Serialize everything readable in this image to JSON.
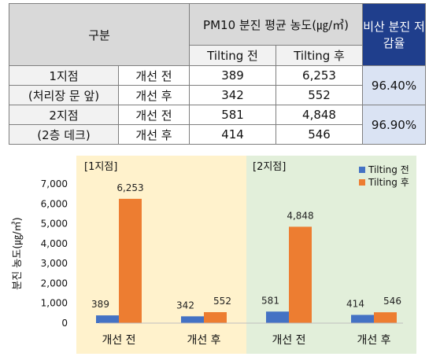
{
  "table": {
    "header_category": "구분",
    "header_pm10": "PM10 분진 평균 농도(㎍/㎥)",
    "header_reduction": "비산 분진 저감율",
    "sub_before": "Tilting 전",
    "sub_after": "Tilting 후",
    "rows": [
      {
        "site_line1": "1지점",
        "site_line2": "(처리장 문 앞)",
        "improve_before_label": "개선 전",
        "improve_after_label": "개선 후",
        "before_tilt_before": "389",
        "before_tilt_after": "6,253",
        "after_tilt_before": "342",
        "after_tilt_after": "552",
        "reduction": "96.40%"
      },
      {
        "site_line1": "2지점",
        "site_line2": "(2층 데크)",
        "improve_before_label": "개선 전",
        "improve_after_label": "개선 후",
        "before_tilt_before": "581",
        "before_tilt_after": "4,848",
        "after_tilt_before": "414",
        "after_tilt_after": "546",
        "reduction": "96.90%"
      }
    ]
  },
  "chart_data": {
    "type": "bar",
    "ylabel": "분진 농도(㎍/㎥)",
    "ylim": [
      0,
      7000
    ],
    "yticks": [
      0,
      1000,
      2000,
      3000,
      4000,
      5000,
      6000,
      7000
    ],
    "ytick_labels": [
      "0",
      "1,000",
      "2,000",
      "3,000",
      "4,000",
      "5,000",
      "6,000",
      "7,000"
    ],
    "groups": [
      "[1지점]",
      "[2지점]"
    ],
    "categories": [
      "개선 전",
      "개선 후",
      "개선 전",
      "개선 후"
    ],
    "series": [
      {
        "name": "Tilting 전",
        "values": [
          389,
          342,
          581,
          414
        ],
        "labels": [
          "389",
          "342",
          "581",
          "414"
        ]
      },
      {
        "name": "Tilting 후",
        "values": [
          6253,
          552,
          4848,
          546
        ],
        "labels": [
          "6,253",
          "552",
          "4,848",
          "546"
        ]
      }
    ],
    "legend_position": "top-right",
    "grid": false
  },
  "colors": {
    "tilting_before": "#4472c4",
    "tilting_after": "#ed7d31",
    "group1_bg": "#fff2cc",
    "group2_bg": "#e2efda",
    "table_header_bg": "#d9d9d9",
    "reduction_header_bg": "#1f3e8c",
    "reduction_cell_bg": "#dae3f3"
  }
}
